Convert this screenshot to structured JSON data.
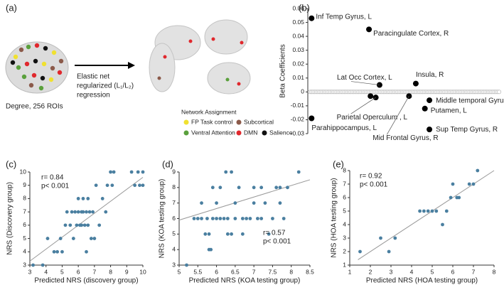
{
  "diagram": {
    "label": "(a)",
    "caption": "Degree, 256 ROIs",
    "arrow_text": [
      "Elastic net",
      "regularized (L₁/L₂)",
      "regression"
    ],
    "legend_title": "Network Assignment",
    "legend": [
      {
        "label": "FP Task control",
        "color": "#f0e130"
      },
      {
        "label": "Subcortical",
        "color": "#8b5a4a"
      },
      {
        "label": "Ventral Attention",
        "color": "#5aa03c"
      },
      {
        "label": "DMN",
        "color": "#e0282d"
      },
      {
        "label": "Salience",
        "color": "#111111"
      }
    ]
  },
  "chart_data": [
    {
      "type": "labeled-scatter",
      "label": "(b)",
      "ylabel": "Beta Coefficients",
      "color": "#000000",
      "xlim": [
        0,
        256
      ],
      "ylim": [
        -0.03,
        0.06
      ],
      "yticks": [
        0.06,
        0.05,
        0.04,
        0.03,
        0.02,
        0.01,
        0,
        -0.01,
        -0.02,
        -0.03
      ],
      "x": [
        5,
        81,
        95,
        143,
        83,
        90,
        5,
        134,
        161,
        155,
        161
      ],
      "values": [
        0.053,
        0.045,
        0.005,
        0.006,
        -0.003,
        -0.004,
        -0.019,
        -0.003,
        -0.006,
        -0.012,
        -0.027
      ],
      "point_labels": [
        "Inf Temp Gyrus, L",
        "Paracingulate Cortex, R",
        "Lat Occ Cortex, L",
        "Insula, R",
        null,
        "Parietal Operculum , L",
        "Parahippocampus, L",
        "Mid Frontal Gyrus, R",
        "Middle temporal Gyrus, R",
        "Putamen, L",
        "Sup Temp Gyrus, R"
      ]
    },
    {
      "type": "scatter",
      "label": "(c)",
      "xlabel": "Predicted NRS (discovery group)",
      "ylabel": "NRS (Discovery group)",
      "annotation": [
        "r= 0.84",
        "p< 0.001"
      ],
      "color": "#4a7fa0",
      "xlim": [
        3,
        10
      ],
      "xticks": [
        3,
        4,
        5,
        6,
        7,
        8,
        9,
        10
      ],
      "ylim": [
        3,
        10
      ],
      "yticks": [
        3,
        4,
        5,
        6,
        7,
        8,
        9,
        10
      ],
      "x": [
        3.2,
        3.8,
        4.1,
        4.5,
        4.7,
        4.9,
        5,
        5.2,
        5.3,
        5.5,
        5.6,
        5.7,
        5.8,
        5.9,
        6,
        6,
        6.1,
        6.2,
        6.2,
        6.3,
        6.3,
        6.4,
        6.5,
        6.5,
        6.6,
        6.6,
        6.7,
        6.8,
        6.9,
        7,
        7.1,
        7.3,
        7.5,
        7.7,
        7.8,
        8,
        8.2,
        8.1,
        9.3,
        9.5,
        9.7,
        9.8,
        10,
        10
      ],
      "values": [
        3,
        3,
        5,
        4,
        4,
        5,
        4,
        6,
        7,
        6,
        7,
        5,
        7,
        6,
        7,
        8,
        6,
        7,
        6,
        7,
        8,
        6,
        7,
        4,
        8,
        6,
        7,
        5,
        7,
        5,
        9,
        6,
        8,
        7,
        9,
        10,
        10,
        9,
        10,
        9,
        10,
        9,
        10,
        9
      ],
      "fit": {
        "x": [
          3,
          10
        ],
        "y": [
          3.3,
          9.6
        ]
      }
    },
    {
      "type": "scatter",
      "label": "(d)",
      "xlabel": "Predicted NRS (KOA testing group)",
      "ylabel": "NRS (KOA testing group)",
      "annotation": [
        "r= 0.57",
        "p< 0.001"
      ],
      "color": "#4a7fa0",
      "xlim": [
        5,
        8.5
      ],
      "xticks": [
        5,
        5.5,
        6,
        6.5,
        7,
        7.5,
        8,
        8.5
      ],
      "ylim": [
        3,
        9
      ],
      "yticks": [
        3,
        4,
        5,
        6,
        7,
        8,
        9
      ],
      "x": [
        5.2,
        5.4,
        5.5,
        5.6,
        5.6,
        5.7,
        5.75,
        5.8,
        5.85,
        5.8,
        5.9,
        5.9,
        6,
        6,
        6.1,
        6.1,
        6.2,
        6.25,
        6.3,
        6.3,
        6.4,
        6.4,
        6.5,
        6.5,
        6.6,
        6.7,
        6.7,
        6.8,
        6.9,
        7,
        7,
        7.1,
        7.2,
        7.2,
        7.3,
        7.4,
        7.5,
        7.6,
        7.7,
        7.7,
        7.8,
        7.9,
        8.2
      ],
      "values": [
        3,
        6,
        6,
        7,
        6,
        5,
        6,
        4,
        4,
        5,
        6,
        8,
        6,
        7,
        6,
        8,
        6,
        9,
        6,
        5,
        5,
        9,
        6,
        7,
        8,
        6,
        5,
        6,
        6,
        8,
        7,
        6,
        6,
        8,
        7,
        5,
        6,
        8,
        8,
        7,
        6,
        8,
        9
      ],
      "fit": {
        "x": [
          5,
          8.5
        ],
        "y": [
          5.9,
          8.5
        ]
      }
    },
    {
      "type": "scatter",
      "label": "(e)",
      "xlabel": "Predicted NRS (HOA testing group)",
      "ylabel": "NRS (HOA testing group)",
      "annotation": [
        "r= 0.92",
        "p< 0.001"
      ],
      "color": "#4a7fa0",
      "xlim": [
        1,
        8
      ],
      "xticks": [
        1,
        2,
        3,
        4,
        5,
        6,
        7,
        8
      ],
      "ylim": [
        1,
        8
      ],
      "yticks": [
        1,
        2,
        3,
        4,
        5,
        6,
        7,
        8
      ],
      "x": [
        1.5,
        2.5,
        2.9,
        3.2,
        4.4,
        4.6,
        4.8,
        5,
        5.2,
        5.5,
        5.7,
        5.9,
        6,
        6.2,
        6.3,
        6.8,
        7,
        7.2
      ],
      "values": [
        2,
        3,
        2,
        3,
        5,
        5,
        5,
        5,
        5,
        4,
        5,
        6,
        7,
        6,
        6,
        7,
        7,
        8
      ],
      "fit": {
        "x": [
          1.4,
          8
        ],
        "y": [
          1.4,
          8
        ]
      }
    }
  ]
}
